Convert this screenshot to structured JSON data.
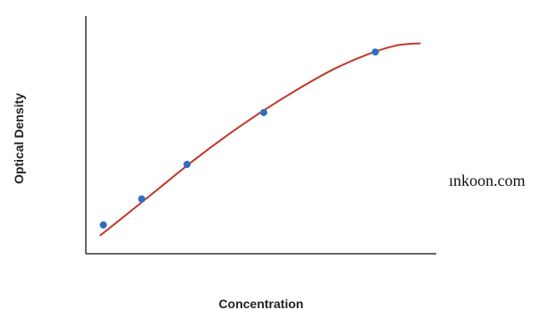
{
  "chart_data": {
    "type": "scatter",
    "title": "",
    "xlabel": "Concentration",
    "ylabel": "Optical Density",
    "x_ticks_shown": false,
    "y_ticks_shown": false,
    "grid": false,
    "legend": "none",
    "xlim": [
      0,
      100
    ],
    "ylim": [
      0,
      100
    ],
    "points": [
      {
        "x": 4,
        "y": 10
      },
      {
        "x": 15,
        "y": 22
      },
      {
        "x": 28,
        "y": 38
      },
      {
        "x": 50,
        "y": 62
      },
      {
        "x": 82,
        "y": 90
      }
    ],
    "fit_curve": [
      {
        "x": 3,
        "y": 5
      },
      {
        "x": 10,
        "y": 14
      },
      {
        "x": 20,
        "y": 27
      },
      {
        "x": 30,
        "y": 40
      },
      {
        "x": 40,
        "y": 52
      },
      {
        "x": 50,
        "y": 63
      },
      {
        "x": 60,
        "y": 73
      },
      {
        "x": 70,
        "y": 82
      },
      {
        "x": 80,
        "y": 89
      },
      {
        "x": 88,
        "y": 93
      },
      {
        "x": 95,
        "y": 94
      }
    ],
    "point_color": "#2f6fc0",
    "curve_color": "#c0392b",
    "axis_color": "#333333"
  },
  "watermark": "ınkoon.com"
}
